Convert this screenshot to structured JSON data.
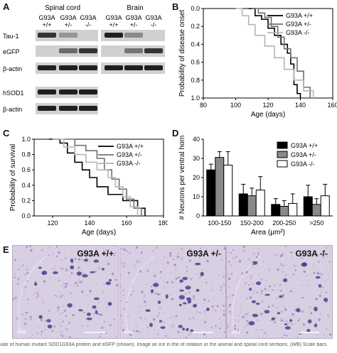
{
  "panels": {
    "A": {
      "letter": "A",
      "tissues": [
        "Spinal cord",
        "Brain"
      ],
      "lanes": [
        "G93A\n+/+",
        "G93A\n+/-",
        "G93A\n-/-",
        "G93A\n+/+",
        "G93A\n+/-",
        "G93A\n-/-"
      ],
      "lane_top": [
        "G93A",
        "G93A",
        "G93A",
        "G93A",
        "G93A",
        "G93A"
      ],
      "lane_bottom": [
        "+/+",
        "+/-",
        "-/-",
        "+/+",
        "+/-",
        "-/-"
      ],
      "blot_rows": [
        "Tau-1",
        "eGFP",
        "β-actin",
        "hSOD1",
        "β-actin"
      ],
      "band_intensity": {
        "Tau-1": [
          0.85,
          0.4,
          0.0,
          0.95,
          0.45,
          0.0
        ],
        "eGFP": [
          0.0,
          0.6,
          0.85,
          0.0,
          0.55,
          0.85
        ],
        "beta-actin-1": [
          0.95,
          0.95,
          0.95,
          0.95,
          0.95,
          0.95
        ],
        "hSOD1": [
          0.95,
          0.95,
          0.95
        ],
        "beta-actin-2": [
          0.95,
          0.95,
          0.95
        ]
      }
    },
    "B": {
      "letter": "B"
    },
    "C": {
      "letter": "C"
    },
    "D": {
      "letter": "D"
    },
    "E": {
      "letter": "E",
      "images": [
        "G93A +/+",
        "G93A +/-",
        "G93A -/-"
      ],
      "region_tag": "WM"
    }
  },
  "chart_data": [
    {
      "panel": "B",
      "type": "line",
      "step": true,
      "xlabel": "Age (days)",
      "ylabel": "Probability of disease onset",
      "xlim": [
        80,
        160
      ],
      "ylim": [
        0.0,
        1.0
      ],
      "y_inverted": true,
      "xticks": [
        80,
        100,
        120,
        140,
        160
      ],
      "yticks": [
        "0.0",
        "0.2",
        "0.4",
        "0.6",
        "0.8",
        "1.0"
      ],
      "legend": "top-right",
      "series": [
        {
          "name": "G93A +/+",
          "color": "#000000",
          "x": [
            108,
            112,
            116,
            120,
            124,
            128,
            132,
            134,
            136,
            138,
            140
          ],
          "y": [
            0.0,
            0.08,
            0.12,
            0.22,
            0.3,
            0.4,
            0.5,
            0.62,
            0.85,
            0.95,
            1.0
          ]
        },
        {
          "name": "G93A +/-",
          "color": "#707070",
          "x": [
            110,
            114,
            118,
            122,
            126,
            130,
            134,
            138,
            142,
            146
          ],
          "y": [
            0.0,
            0.05,
            0.1,
            0.2,
            0.32,
            0.45,
            0.55,
            0.7,
            0.88,
            1.0
          ]
        },
        {
          "name": "G93A -/-",
          "color": "#b5b5b5",
          "x": [
            100,
            104,
            108,
            112,
            118,
            124,
            130,
            136,
            142,
            148
          ],
          "y": [
            0.0,
            0.08,
            0.18,
            0.3,
            0.42,
            0.55,
            0.68,
            0.8,
            0.92,
            1.0
          ]
        }
      ]
    },
    {
      "panel": "C",
      "type": "line",
      "step": true,
      "xlabel": "Age (days)",
      "ylabel": "Probability of survival",
      "xlim": [
        110,
        180
      ],
      "ylim": [
        0.0,
        1.0
      ],
      "xticks": [
        120,
        140,
        160,
        180
      ],
      "yticks": [
        "0.0",
        "0.2",
        "0.4",
        "0.6",
        "0.8",
        "1.0"
      ],
      "legend": "top-right",
      "series": [
        {
          "name": "G93A +/+",
          "color": "#000000",
          "x": [
            118,
            124,
            128,
            132,
            136,
            140,
            144,
            150,
            158,
            166,
            170
          ],
          "y": [
            1.0,
            0.95,
            0.82,
            0.7,
            0.6,
            0.5,
            0.38,
            0.28,
            0.2,
            0.1,
            0.0
          ]
        },
        {
          "name": "G93A +/-",
          "color": "#707070",
          "x": [
            126,
            132,
            138,
            144,
            148,
            152,
            156,
            160,
            164,
            168
          ],
          "y": [
            1.0,
            0.92,
            0.85,
            0.75,
            0.6,
            0.48,
            0.35,
            0.22,
            0.1,
            0.0
          ]
        },
        {
          "name": "G93A -/-",
          "color": "#b5b5b5",
          "x": [
            120,
            126,
            132,
            138,
            144,
            150,
            154,
            158,
            162,
            166
          ],
          "y": [
            1.0,
            0.9,
            0.8,
            0.7,
            0.6,
            0.5,
            0.38,
            0.25,
            0.12,
            0.0
          ]
        }
      ]
    },
    {
      "panel": "D",
      "type": "bar",
      "xlabel": "Area (μm²)",
      "ylabel": "# Neurons per ventral horn",
      "ylim": [
        0,
        40
      ],
      "yticks": [
        "0",
        "10",
        "20",
        "30",
        "40"
      ],
      "categories": [
        "100-150",
        "150-200",
        "200-250",
        ">250"
      ],
      "legend": "top-right",
      "series": [
        {
          "name": "G93A +/+",
          "color": "#000000",
          "values": [
            24,
            11.5,
            6,
            10
          ],
          "errors": [
            3,
            5,
            3,
            6
          ]
        },
        {
          "name": "G93A +/-",
          "color": "#8a8a8a",
          "values": [
            30.5,
            10.5,
            5,
            6
          ],
          "errors": [
            3,
            4,
            3,
            3
          ]
        },
        {
          "name": "G93A -/-",
          "color": "#ffffff",
          "values": [
            26.5,
            13.5,
            6.5,
            10.5
          ],
          "errors": [
            7,
            7,
            5,
            6
          ]
        }
      ]
    }
  ],
  "caption": "ular of human mutant SOD1G93A protein and eGFP (shown). Image an ice in the of rotation or the animal and spinal cord sections. (WB) Scale bars."
}
